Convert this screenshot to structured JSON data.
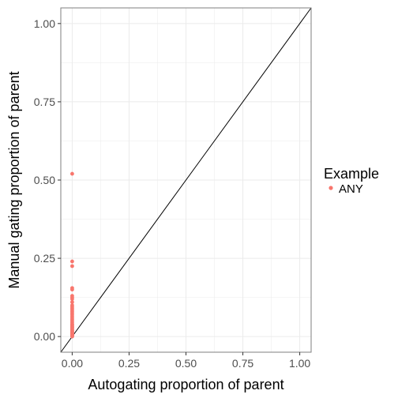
{
  "chart_data": {
    "type": "scatter",
    "xlabel": "Autogating proportion of parent",
    "ylabel": "Manual gating proportion of parent",
    "xlim": [
      -0.05,
      1.05
    ],
    "ylim": [
      -0.05,
      1.05
    ],
    "xticks": [
      "0.00",
      "0.25",
      "0.50",
      "0.75",
      "1.00"
    ],
    "yticks": [
      "0.00",
      "0.25",
      "0.50",
      "0.75",
      "1.00"
    ],
    "grid": true,
    "reference_line": "y = x",
    "legend": {
      "title": "Example",
      "position": "right"
    },
    "series": [
      {
        "name": "ANY",
        "color": "#f8766d",
        "x": [
          0,
          0,
          0,
          0,
          0,
          0,
          0,
          0,
          0,
          0,
          0,
          0,
          0,
          0,
          0,
          0,
          0,
          0,
          0,
          0,
          0,
          0,
          0,
          0,
          0,
          0,
          0,
          0,
          0,
          0,
          0,
          0,
          0,
          0,
          0,
          0,
          0,
          0,
          0,
          0,
          0,
          0,
          0,
          0
        ],
        "y": [
          0.52,
          0.24,
          0.225,
          0.155,
          0.15,
          0.13,
          0.125,
          0.12,
          0.11,
          0.1,
          0.095,
          0.09,
          0.085,
          0.08,
          0.075,
          0.07,
          0.065,
          0.06,
          0.055,
          0.05,
          0.045,
          0.04,
          0.038,
          0.035,
          0.032,
          0.03,
          0.028,
          0.025,
          0.022,
          0.02,
          0.018,
          0.016,
          0.014,
          0.012,
          0.01,
          0.009,
          0.008,
          0.006,
          0.005,
          0.004,
          0.003,
          0.002,
          0.001,
          0.0
        ]
      }
    ]
  }
}
